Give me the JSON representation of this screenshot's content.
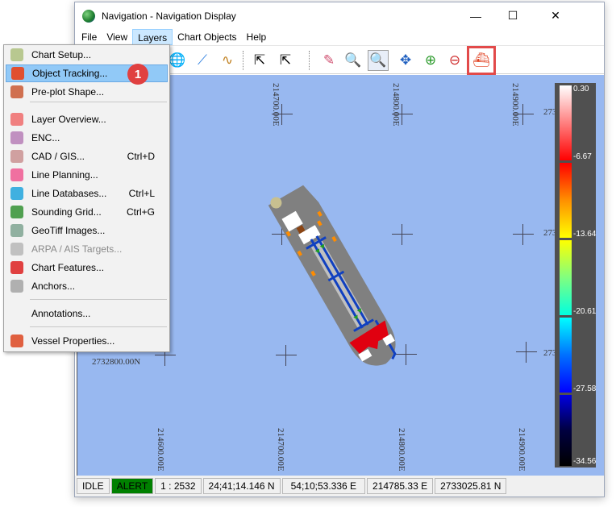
{
  "window": {
    "title": "Navigation - Navigation Display",
    "minimize": "—",
    "maximize": "☐",
    "close": "✕"
  },
  "menubar": [
    "File",
    "View",
    "Layers",
    "Chart Objects",
    "Help"
  ],
  "layers_menu": {
    "items": [
      {
        "label": "Chart Setup...",
        "shortcut": "",
        "icon": "chart-setup-icon",
        "color": "#b8c890"
      },
      {
        "label": "Object Tracking...",
        "shortcut": "",
        "icon": "object-tracking-icon",
        "color": "#e05030",
        "selected": true
      },
      {
        "label": "Pre-plot Shape...",
        "shortcut": "",
        "icon": "preplot-shape-icon",
        "color": "#d07050"
      },
      {
        "label": "Layer Overview...",
        "shortcut": "",
        "icon": "layer-overview-icon",
        "color": "#f08080"
      },
      {
        "label": "ENC...",
        "shortcut": "",
        "icon": "enc-icon",
        "color": "#c090c0"
      },
      {
        "label": "CAD / GIS...",
        "shortcut": "Ctrl+D",
        "icon": "cad-gis-icon",
        "color": "#d0a0a0"
      },
      {
        "label": "Line Planning...",
        "shortcut": "",
        "icon": "line-planning-icon",
        "color": "#f070a0"
      },
      {
        "label": "Line Databases...",
        "shortcut": "Ctrl+L",
        "icon": "line-databases-icon",
        "color": "#40b0e0"
      },
      {
        "label": "Sounding Grid...",
        "shortcut": "Ctrl+G",
        "icon": "sounding-grid-icon",
        "color": "#50a050"
      },
      {
        "label": "GeoTiff Images...",
        "shortcut": "",
        "icon": "geotiff-icon",
        "color": "#90b0a0"
      },
      {
        "label": "ARPA / AIS Targets...",
        "shortcut": "",
        "icon": "arpa-ais-icon",
        "color": "#c0c0c0",
        "disabled": true
      },
      {
        "label": "Chart Features...",
        "shortcut": "",
        "icon": "chart-features-icon",
        "color": "#e04040"
      },
      {
        "label": "Anchors...",
        "shortcut": "",
        "icon": "anchor-icon",
        "color": "#b0b0b0"
      },
      {
        "label": "Annotations...",
        "shortcut": "",
        "icon": "",
        "color": ""
      },
      {
        "label": "Vessel Properties...",
        "shortcut": "",
        "icon": "vessel-properties-icon",
        "color": "#e06040"
      }
    ]
  },
  "callout": "1",
  "map": {
    "top_labels": [
      "214700.00E",
      "214800.00E",
      "214900.00E"
    ],
    "bottom_labels": [
      "214600.00E",
      "214700.00E",
      "214800.00E",
      "214900.00E"
    ],
    "left_label": "2732800.00N",
    "right_labels": [
      "273",
      "273",
      "273"
    ],
    "colorbar": {
      "labels": [
        "0.30",
        "-6.67",
        "-13.64",
        "-20.61",
        "-27.58",
        "-34.56"
      ]
    }
  },
  "status": {
    "mode": "IDLE",
    "alert": "ALERT",
    "scale": "1 : 2532",
    "lat": "24;41;14.146 N",
    "lon": "54;10;53.336 E",
    "easting": "214785.33 E",
    "northing": "2733025.81 N",
    "alert_color": "#008000"
  }
}
